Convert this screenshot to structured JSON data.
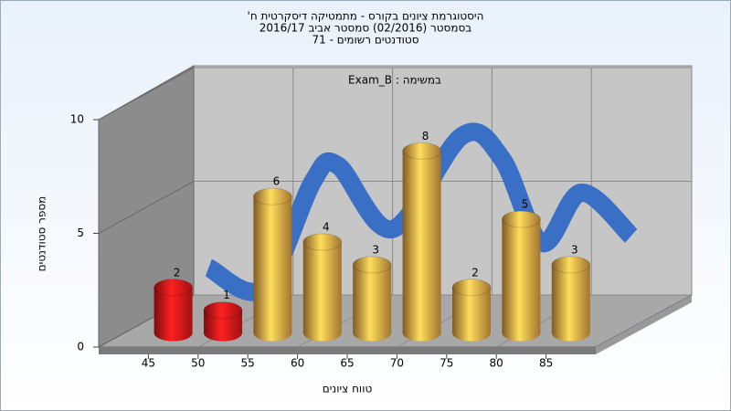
{
  "chart_data": {
    "type": "histogram",
    "title": [
      "היסטוגרמת ציונים בקורס - מתמטיקה דיסקרטית ח'",
      "בסמסטר  (02/2016)  סמסטר אביב 2016/17",
      "סטודנטים רשומים - 71"
    ],
    "subtitle": "במשימה : Exam_B",
    "x_label": "טווח ציונים",
    "y_label": "מספר סטודנטים",
    "bins": [
      45,
      50,
      55,
      60,
      65,
      70,
      75,
      80,
      85,
      90
    ],
    "values": [
      2,
      1,
      6,
      4,
      3,
      8,
      2,
      5,
      3
    ],
    "colors": [
      "#e01818",
      "#e01818",
      "#e8a444",
      "#e8a444",
      "#e8a444",
      "#e8a444",
      "#e8a444",
      "#e8a444",
      "#e8a444"
    ],
    "trend": {
      "color": "#3a6fc6",
      "x": [
        41.5,
        47,
        52,
        54.5,
        60,
        67,
        71,
        75,
        79,
        84
      ],
      "values": [
        1.2,
        0.3,
        5.0,
        5.7,
        2.9,
        7.0,
        6.0,
        2.3,
        4.5,
        2.6
      ]
    },
    "xlim": [
      40,
      90
    ],
    "xticks": [
      45,
      50,
      55,
      60,
      65,
      70,
      75,
      80,
      85
    ],
    "ylim": [
      0,
      10
    ],
    "yticks": [
      0,
      5,
      10
    ],
    "grid": true
  }
}
